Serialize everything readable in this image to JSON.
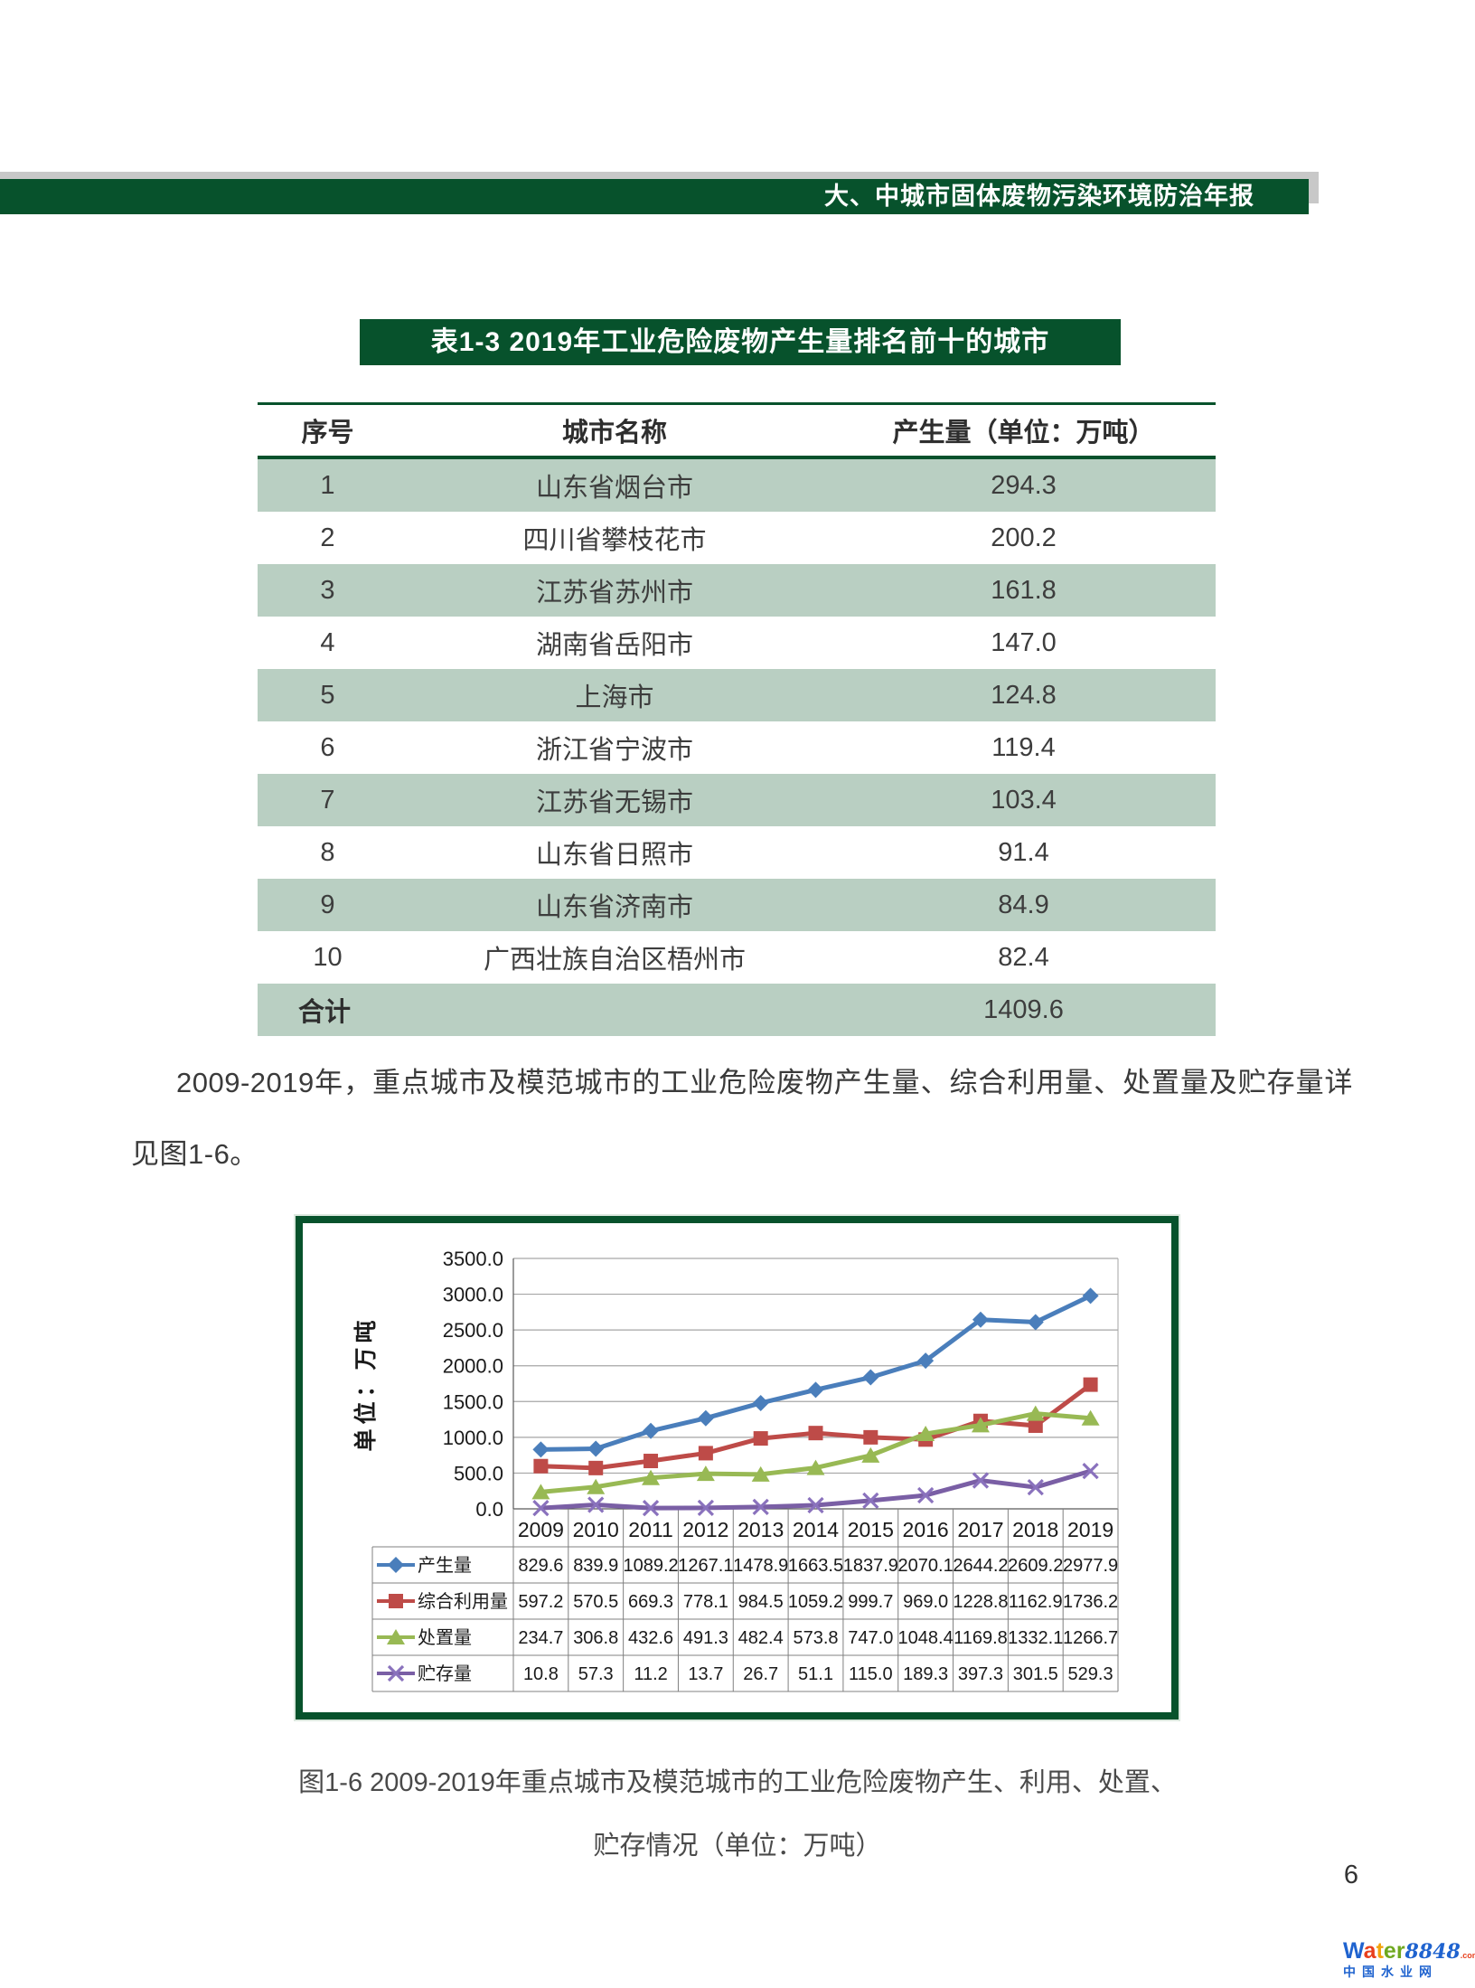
{
  "header": {
    "title": "大、中城市固体废物污染环境防治年报"
  },
  "table": {
    "title": "表1-3 2019年工业危险废物产生量排名前十的城市",
    "columns": [
      "序号",
      "城市名称",
      "产生量（单位：万吨）"
    ],
    "rows": [
      [
        "1",
        "山东省烟台市",
        "294.3"
      ],
      [
        "2",
        "四川省攀枝花市",
        "200.2"
      ],
      [
        "3",
        "江苏省苏州市",
        "161.8"
      ],
      [
        "4",
        "湖南省岳阳市",
        "147.0"
      ],
      [
        "5",
        "上海市",
        "124.8"
      ],
      [
        "6",
        "浙江省宁波市",
        "119.4"
      ],
      [
        "7",
        "江苏省无锡市",
        "103.4"
      ],
      [
        "8",
        "山东省日照市",
        "91.4"
      ],
      [
        "9",
        "山东省济南市",
        "84.9"
      ],
      [
        "10",
        "广西壮族自治区梧州市",
        "82.4"
      ]
    ],
    "total_label": "合计",
    "total_value": "1409.6"
  },
  "paragraph": {
    "text": "2009-2019年，重点城市及模范城市的工业危险废物产生量、综合利用量、处置量及贮存量详见图1-6。"
  },
  "chart_data": {
    "type": "line",
    "ylabel": "单位：万吨",
    "ylim": [
      0,
      3500
    ],
    "ytick_step": 500,
    "grid": true,
    "legend_position": "table-left",
    "categories": [
      "2009",
      "2010",
      "2011",
      "2012",
      "2013",
      "2014",
      "2015",
      "2016",
      "2017",
      "2018",
      "2019"
    ],
    "series": [
      {
        "name": "产生量",
        "color": "#4a7ebb",
        "marker": "diamond",
        "values": [
          829.6,
          839.9,
          1089.2,
          1267.1,
          1478.9,
          1663.5,
          1837.9,
          2070.1,
          2644.2,
          2609.2,
          2977.9
        ]
      },
      {
        "name": "综合利用量",
        "color": "#be4b48",
        "marker": "square",
        "values": [
          597.2,
          570.5,
          669.3,
          778.1,
          984.5,
          1059.2,
          999.7,
          969.0,
          1228.8,
          1162.9,
          1736.2
        ]
      },
      {
        "name": "处置量",
        "color": "#98b954",
        "marker": "triangle",
        "values": [
          234.7,
          306.8,
          432.6,
          491.3,
          482.4,
          573.8,
          747.0,
          1048.4,
          1169.8,
          1332.1,
          1266.7
        ]
      },
      {
        "name": "贮存量",
        "color": "#7a5fa5",
        "marker": "x",
        "values": [
          10.8,
          57.3,
          11.2,
          13.7,
          26.7,
          51.1,
          115.0,
          189.3,
          397.3,
          301.5,
          529.3
        ]
      }
    ]
  },
  "figure_caption": {
    "line1": "图1-6 2009-2019年重点城市及模范城市的工业危险废物产生、利用、处置、",
    "line2": "贮存情况（单位：万吨）"
  },
  "page": {
    "number": "6"
  },
  "logo": {
    "letters": [
      {
        "ch": "W",
        "color": "#1f63cf"
      },
      {
        "ch": "a",
        "color": "#e8401d"
      },
      {
        "ch": "t",
        "color": "#f2a30b"
      },
      {
        "ch": "e",
        "color": "#6fa81f"
      },
      {
        "ch": "r",
        "color": "#6fa81f"
      }
    ],
    "number": "8848",
    "number_color": "#1f63cf",
    "suffix": ".com",
    "suffix_color": "#e8401d",
    "tagline": "中国水业网",
    "tagline_color": "#1f63cf"
  }
}
